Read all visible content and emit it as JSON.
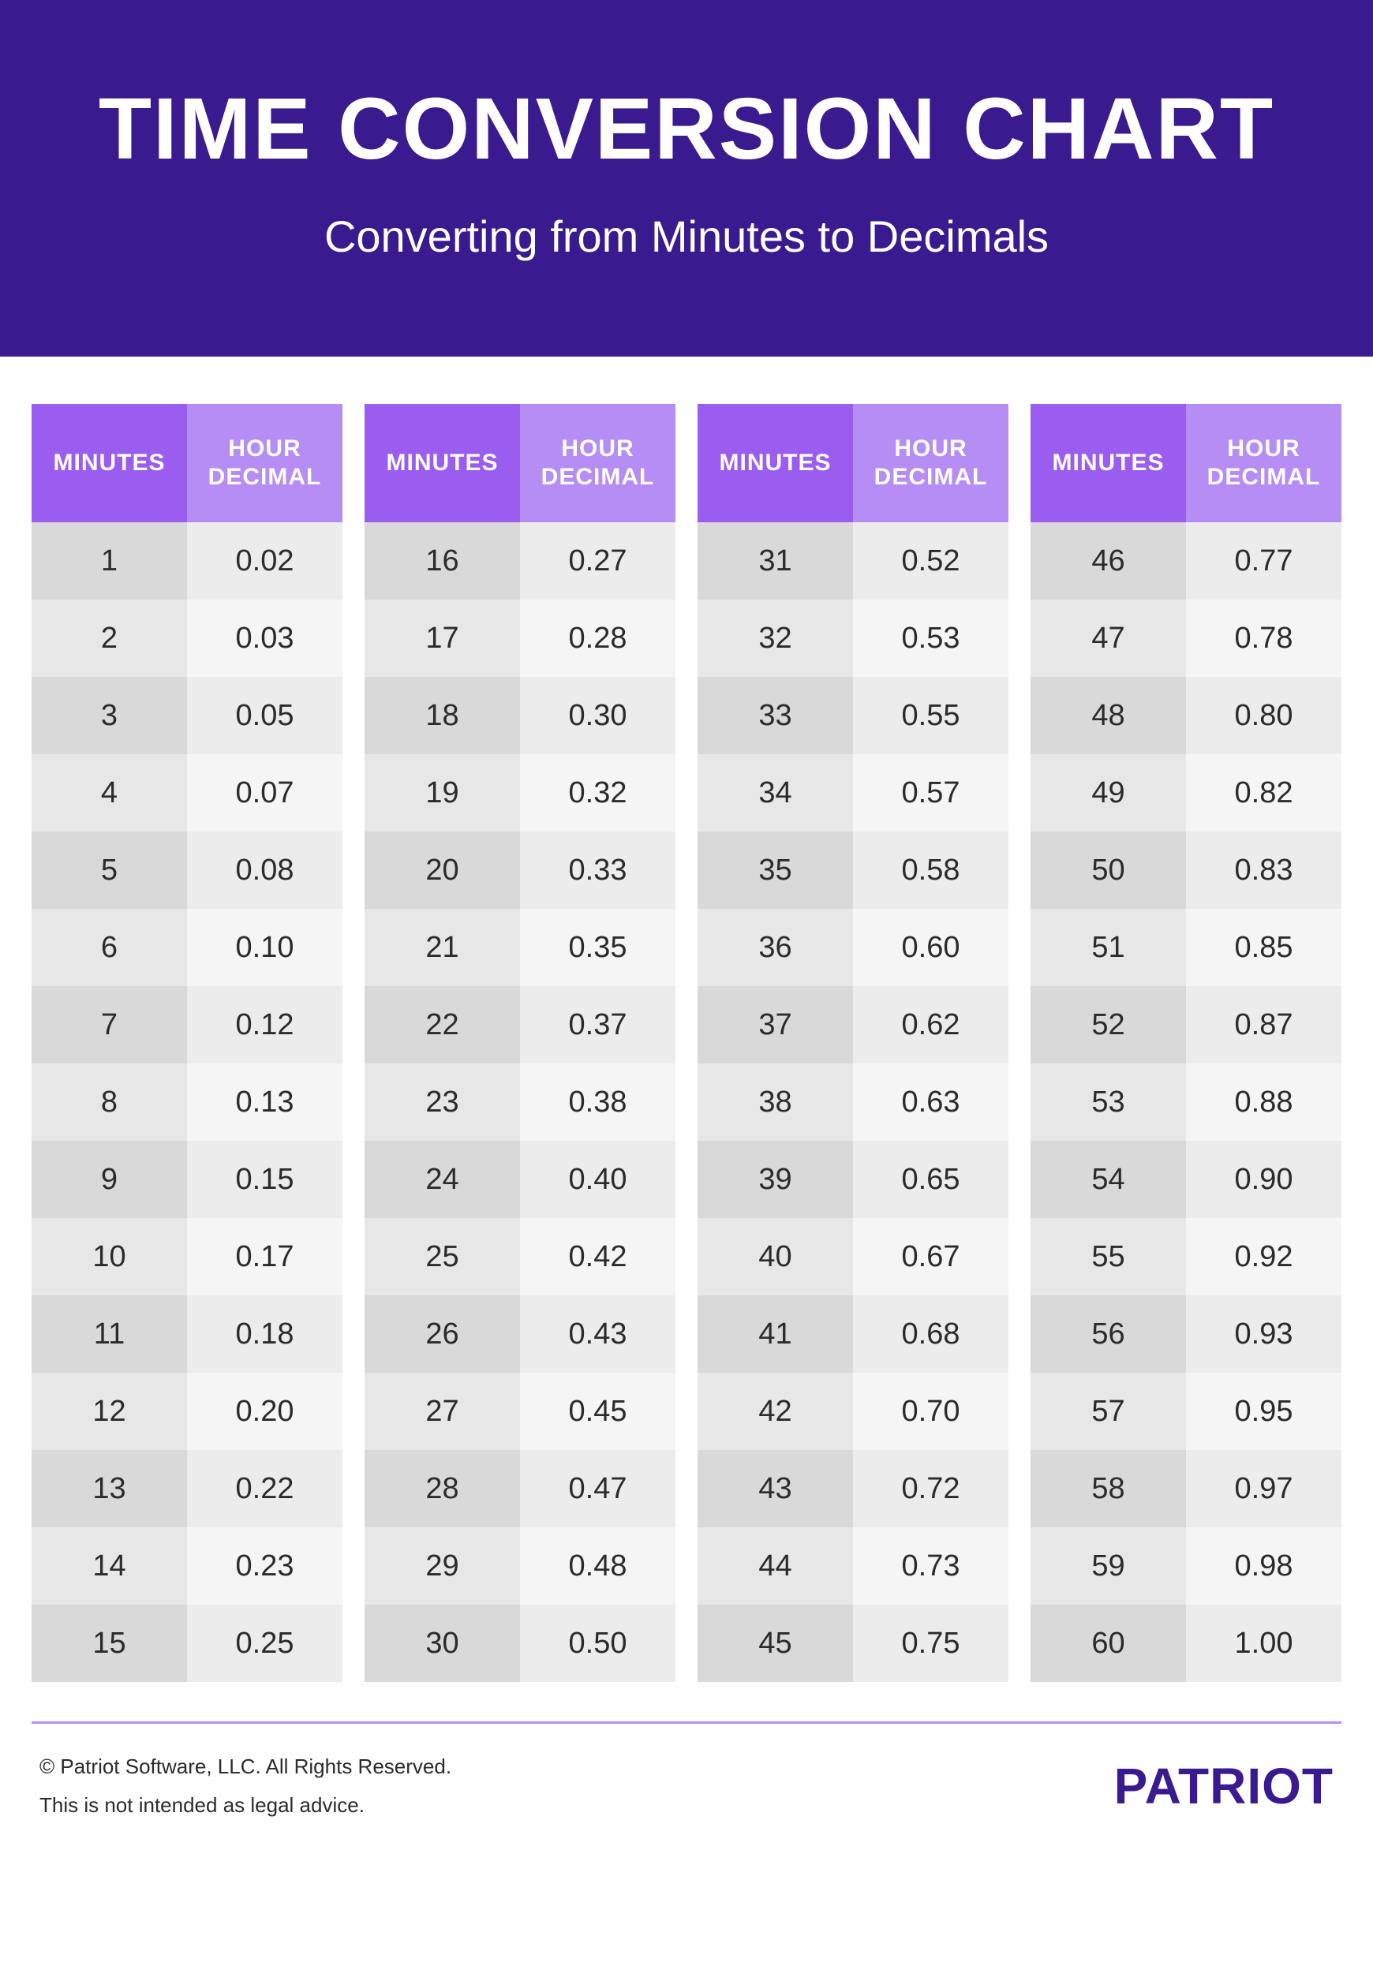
{
  "header": {
    "title": "TIME CONVERSION CHART",
    "subtitle": "Converting from Minutes to Decimals"
  },
  "columns_header": {
    "minutes": "MINUTES",
    "decimal": "HOUR DECIMAL"
  },
  "colors": {
    "header_bg": "#3a1a8f",
    "th_minutes": "#9b5cf0",
    "th_decimal": "#b68cf5",
    "row_even_minutes": "#d9d9d9",
    "row_even_decimal": "#ececec",
    "row_odd_minutes": "#e7e7e7",
    "row_odd_decimal": "#f5f5f5",
    "footer_border": "#b68cf5",
    "logo_color": "#3a1a8f",
    "text_color": "#2b2b2b"
  },
  "tables": [
    {
      "rows": [
        {
          "m": "1",
          "d": "0.02"
        },
        {
          "m": "2",
          "d": "0.03"
        },
        {
          "m": "3",
          "d": "0.05"
        },
        {
          "m": "4",
          "d": "0.07"
        },
        {
          "m": "5",
          "d": "0.08"
        },
        {
          "m": "6",
          "d": "0.10"
        },
        {
          "m": "7",
          "d": "0.12"
        },
        {
          "m": "8",
          "d": "0.13"
        },
        {
          "m": "9",
          "d": "0.15"
        },
        {
          "m": "10",
          "d": "0.17"
        },
        {
          "m": "11",
          "d": "0.18"
        },
        {
          "m": "12",
          "d": "0.20"
        },
        {
          "m": "13",
          "d": "0.22"
        },
        {
          "m": "14",
          "d": "0.23"
        },
        {
          "m": "15",
          "d": "0.25"
        }
      ]
    },
    {
      "rows": [
        {
          "m": "16",
          "d": "0.27"
        },
        {
          "m": "17",
          "d": "0.28"
        },
        {
          "m": "18",
          "d": "0.30"
        },
        {
          "m": "19",
          "d": "0.32"
        },
        {
          "m": "20",
          "d": "0.33"
        },
        {
          "m": "21",
          "d": "0.35"
        },
        {
          "m": "22",
          "d": "0.37"
        },
        {
          "m": "23",
          "d": "0.38"
        },
        {
          "m": "24",
          "d": "0.40"
        },
        {
          "m": "25",
          "d": "0.42"
        },
        {
          "m": "26",
          "d": "0.43"
        },
        {
          "m": "27",
          "d": "0.45"
        },
        {
          "m": "28",
          "d": "0.47"
        },
        {
          "m": "29",
          "d": "0.48"
        },
        {
          "m": "30",
          "d": "0.50"
        }
      ]
    },
    {
      "rows": [
        {
          "m": "31",
          "d": "0.52"
        },
        {
          "m": "32",
          "d": "0.53"
        },
        {
          "m": "33",
          "d": "0.55"
        },
        {
          "m": "34",
          "d": "0.57"
        },
        {
          "m": "35",
          "d": "0.58"
        },
        {
          "m": "36",
          "d": "0.60"
        },
        {
          "m": "37",
          "d": "0.62"
        },
        {
          "m": "38",
          "d": "0.63"
        },
        {
          "m": "39",
          "d": "0.65"
        },
        {
          "m": "40",
          "d": "0.67"
        },
        {
          "m": "41",
          "d": "0.68"
        },
        {
          "m": "42",
          "d": "0.70"
        },
        {
          "m": "43",
          "d": "0.72"
        },
        {
          "m": "44",
          "d": "0.73"
        },
        {
          "m": "45",
          "d": "0.75"
        }
      ]
    },
    {
      "rows": [
        {
          "m": "46",
          "d": "0.77"
        },
        {
          "m": "47",
          "d": "0.78"
        },
        {
          "m": "48",
          "d": "0.80"
        },
        {
          "m": "49",
          "d": "0.82"
        },
        {
          "m": "50",
          "d": "0.83"
        },
        {
          "m": "51",
          "d": "0.85"
        },
        {
          "m": "52",
          "d": "0.87"
        },
        {
          "m": "53",
          "d": "0.88"
        },
        {
          "m": "54",
          "d": "0.90"
        },
        {
          "m": "55",
          "d": "0.92"
        },
        {
          "m": "56",
          "d": "0.93"
        },
        {
          "m": "57",
          "d": "0.95"
        },
        {
          "m": "58",
          "d": "0.97"
        },
        {
          "m": "59",
          "d": "0.98"
        },
        {
          "m": "60",
          "d": "1.00"
        }
      ]
    }
  ],
  "footer": {
    "copyright": "© Patriot Software, LLC. All Rights Reserved.",
    "disclaimer": "This is not intended as legal advice.",
    "logo": "PATRIOT"
  }
}
